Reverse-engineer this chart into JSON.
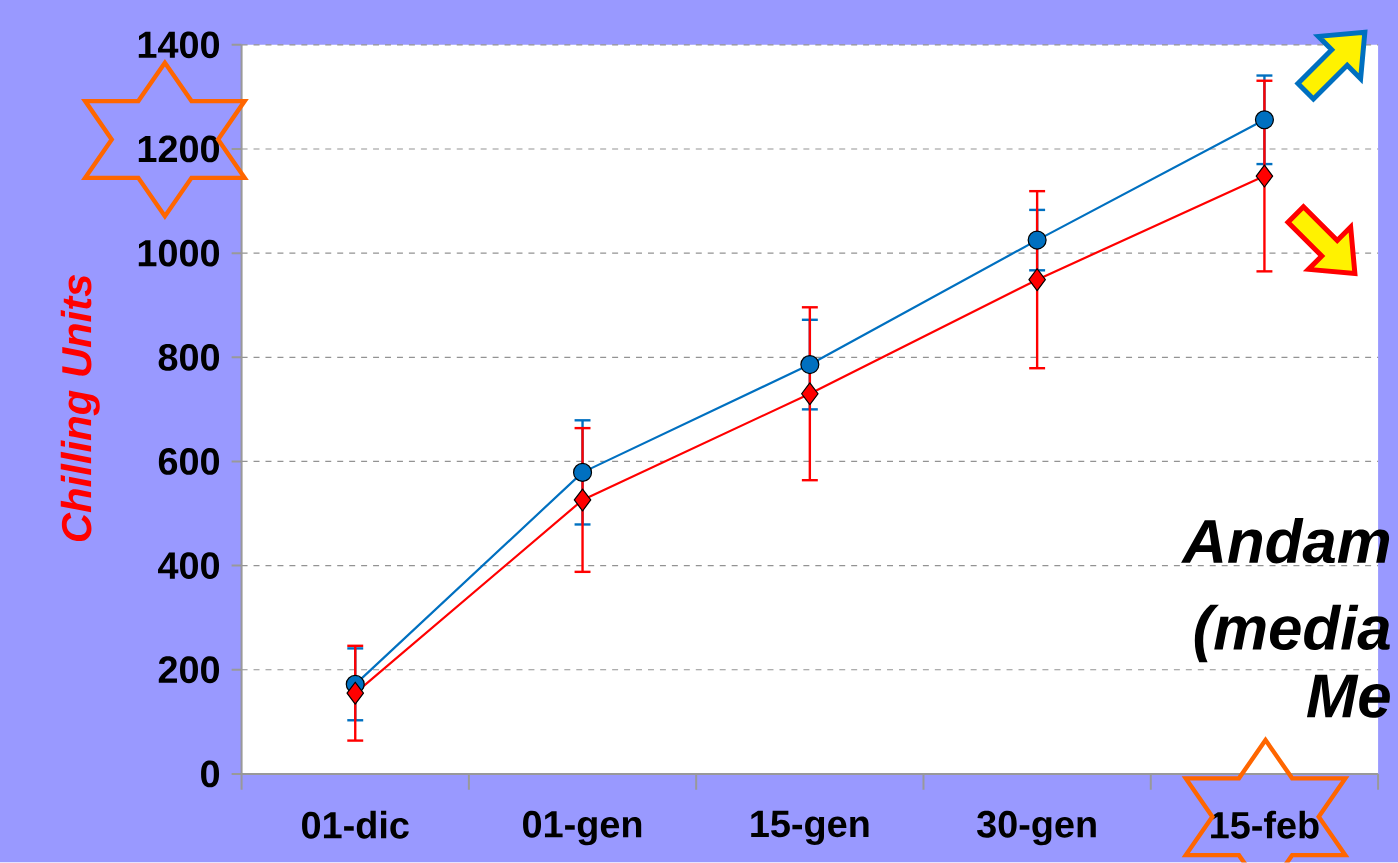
{
  "chart_data": {
    "type": "line",
    "ylabel": "Chilling Units",
    "categories": [
      "01-dic",
      "01-gen",
      "15-gen",
      "30-gen",
      "15-feb"
    ],
    "series": [
      {
        "color": "#0070c0",
        "marker": "circle",
        "values": [
          172,
          579,
          786,
          1025,
          1256
        ],
        "errors": [
          69,
          100,
          86,
          58,
          85
        ]
      },
      {
        "color": "#ff0000",
        "marker": "diamond",
        "values": [
          155,
          526,
          730,
          949,
          1148
        ],
        "errors": [
          91,
          138,
          166,
          170,
          183
        ]
      }
    ],
    "ylim": [
      0,
      1400
    ],
    "yticks": [
      0,
      200,
      400,
      600,
      800,
      1000,
      1200,
      1400
    ],
    "grid": "y",
    "annotations": [
      "Andam",
      "(media",
      "Me"
    ]
  }
}
